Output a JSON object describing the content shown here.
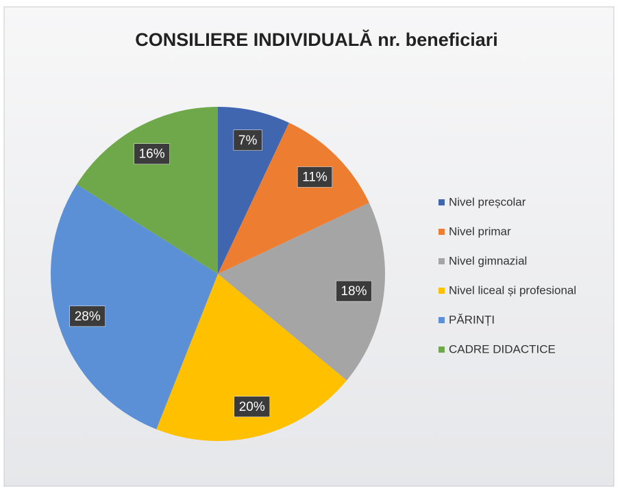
{
  "chart_data": {
    "type": "pie",
    "title": "CONSILIERE INDIVIDUALĂ nr. beneficiari",
    "categories": [
      "Nivel preșcolar",
      "Nivel primar",
      "Nivel gimnazial",
      "Nivel liceal și profesional",
      "PĂRINȚI",
      "CADRE DIDACTICE"
    ],
    "values": [
      7,
      11,
      18,
      20,
      28,
      16
    ],
    "value_labels": [
      "7%",
      "11%",
      "18%",
      "20%",
      "28%",
      "16%"
    ],
    "colors": [
      "#4166b0",
      "#ed7d31",
      "#a5a5a5",
      "#ffc000",
      "#5b8fd6",
      "#6fa84a"
    ],
    "legend": "right"
  }
}
